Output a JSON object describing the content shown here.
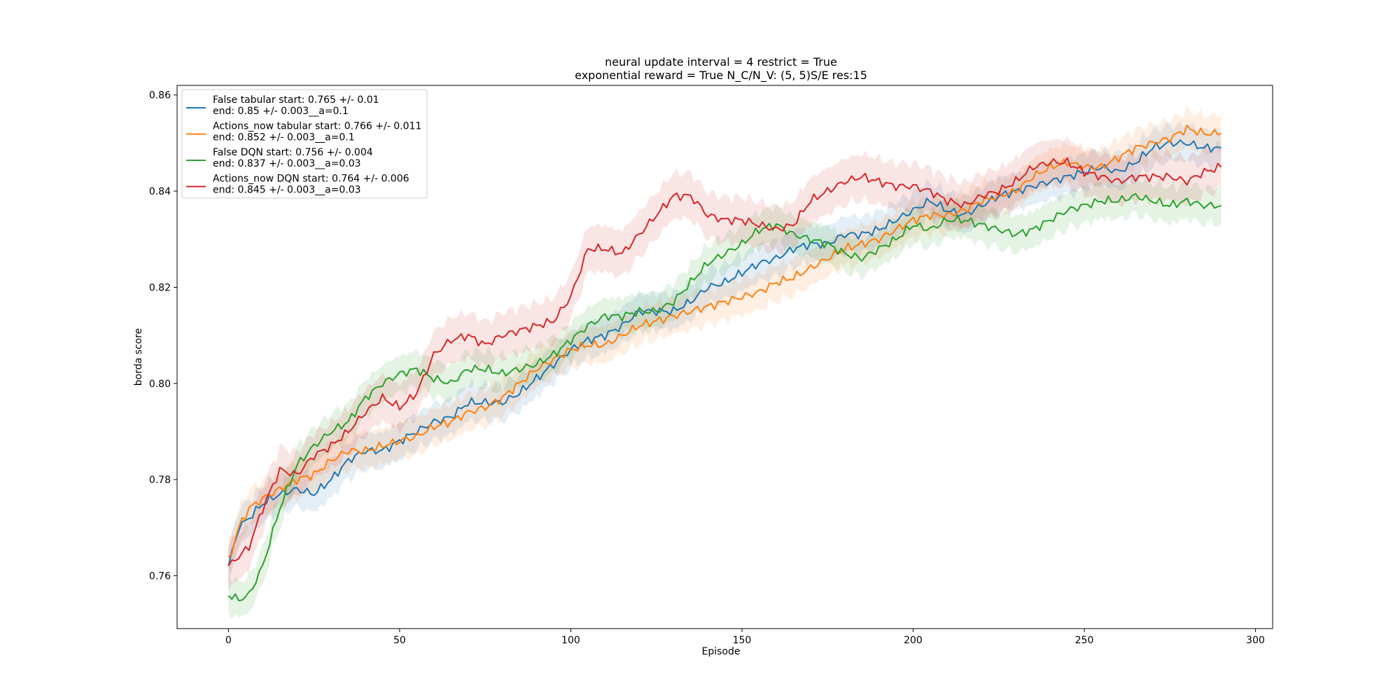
{
  "chart_data": {
    "type": "line",
    "title_line1": "neural update interval = 4 restrict = True",
    "title_line2": "exponential reward = True N_C/N_V: (5, 5)S/E res:15",
    "xlabel": "Episode",
    "ylabel": "borda score",
    "xlim": [
      -15,
      305
    ],
    "ylim": [
      0.749,
      0.862
    ],
    "xticks": [
      0,
      50,
      100,
      150,
      200,
      250,
      300
    ],
    "yticks": [
      0.76,
      0.78,
      0.8,
      0.82,
      0.84,
      0.86
    ],
    "ytick_labels": [
      "0.76",
      "0.78",
      "0.80",
      "0.82",
      "0.84",
      "0.86"
    ],
    "grid": false,
    "legend_position": "upper-left",
    "series": [
      {
        "name_line1": "False tabular start: 0.765 +/- 0.01",
        "name_line2": "end: 0.85 +/- 0.003__a=0.1",
        "color": "#1f77b4",
        "anchors_x": [
          0,
          3,
          6,
          10,
          15,
          20,
          25,
          30,
          35,
          40,
          45,
          50,
          55,
          60,
          65,
          70,
          75,
          80,
          85,
          90,
          95,
          100,
          105,
          110,
          115,
          120,
          125,
          130,
          135,
          140,
          145,
          150,
          155,
          160,
          165,
          170,
          175,
          180,
          185,
          190,
          195,
          200,
          205,
          210,
          215,
          220,
          225,
          230,
          235,
          240,
          245,
          250,
          255,
          260,
          265,
          270,
          275,
          280,
          285,
          290
        ],
        "anchors_y": [
          0.762,
          0.77,
          0.772,
          0.775,
          0.777,
          0.778,
          0.777,
          0.78,
          0.784,
          0.786,
          0.786,
          0.788,
          0.79,
          0.792,
          0.793,
          0.796,
          0.796,
          0.796,
          0.798,
          0.801,
          0.804,
          0.807,
          0.809,
          0.81,
          0.812,
          0.815,
          0.815,
          0.815,
          0.817,
          0.82,
          0.821,
          0.823,
          0.825,
          0.826,
          0.828,
          0.829,
          0.829,
          0.831,
          0.831,
          0.832,
          0.834,
          0.836,
          0.838,
          0.836,
          0.835,
          0.837,
          0.839,
          0.84,
          0.841,
          0.842,
          0.843,
          0.844,
          0.845,
          0.844,
          0.846,
          0.849,
          0.85,
          0.85,
          0.849,
          0.849
        ],
        "band": 0.003
      },
      {
        "name_line1": "Actions_now tabular start: 0.766 +/- 0.011",
        "name_line2": "end: 0.852 +/- 0.003__a=0.1",
        "color": "#ff7f0e",
        "anchors_x": [
          0,
          3,
          6,
          10,
          15,
          20,
          25,
          30,
          35,
          40,
          45,
          50,
          55,
          60,
          65,
          70,
          75,
          80,
          85,
          90,
          95,
          100,
          105,
          110,
          115,
          120,
          125,
          130,
          135,
          140,
          145,
          150,
          155,
          160,
          165,
          170,
          175,
          180,
          185,
          190,
          195,
          200,
          205,
          210,
          215,
          220,
          225,
          230,
          235,
          240,
          245,
          250,
          255,
          260,
          265,
          270,
          275,
          280,
          285,
          290
        ],
        "anchors_y": [
          0.763,
          0.77,
          0.774,
          0.776,
          0.778,
          0.78,
          0.781,
          0.784,
          0.786,
          0.786,
          0.787,
          0.788,
          0.789,
          0.791,
          0.792,
          0.794,
          0.795,
          0.797,
          0.8,
          0.803,
          0.805,
          0.807,
          0.808,
          0.808,
          0.81,
          0.812,
          0.813,
          0.814,
          0.815,
          0.816,
          0.817,
          0.818,
          0.819,
          0.821,
          0.822,
          0.824,
          0.826,
          0.828,
          0.829,
          0.83,
          0.832,
          0.834,
          0.835,
          0.835,
          0.836,
          0.838,
          0.839,
          0.84,
          0.843,
          0.845,
          0.846,
          0.845,
          0.845,
          0.847,
          0.849,
          0.85,
          0.851,
          0.853,
          0.852,
          0.852
        ],
        "band": 0.003
      },
      {
        "name_line1": "False DQN start: 0.756 +/- 0.004",
        "name_line2": "end: 0.837 +/- 0.003__a=0.03",
        "color": "#2ca02c",
        "anchors_x": [
          0,
          3,
          6,
          10,
          15,
          20,
          25,
          30,
          35,
          40,
          45,
          50,
          55,
          60,
          65,
          70,
          75,
          80,
          85,
          90,
          95,
          100,
          105,
          110,
          115,
          120,
          125,
          130,
          135,
          140,
          145,
          150,
          155,
          160,
          165,
          170,
          175,
          180,
          185,
          190,
          195,
          200,
          205,
          210,
          215,
          220,
          225,
          230,
          235,
          240,
          245,
          250,
          255,
          260,
          265,
          270,
          275,
          280,
          285,
          290
        ],
        "anchors_y": [
          0.756,
          0.755,
          0.756,
          0.762,
          0.774,
          0.783,
          0.787,
          0.79,
          0.792,
          0.797,
          0.8,
          0.802,
          0.803,
          0.801,
          0.8,
          0.803,
          0.803,
          0.802,
          0.803,
          0.804,
          0.806,
          0.809,
          0.812,
          0.814,
          0.814,
          0.815,
          0.815,
          0.817,
          0.821,
          0.825,
          0.827,
          0.829,
          0.832,
          0.833,
          0.831,
          0.83,
          0.829,
          0.827,
          0.826,
          0.828,
          0.83,
          0.833,
          0.832,
          0.834,
          0.834,
          0.833,
          0.832,
          0.831,
          0.832,
          0.834,
          0.836,
          0.837,
          0.838,
          0.838,
          0.839,
          0.838,
          0.837,
          0.838,
          0.837,
          0.837
        ],
        "band": 0.003
      },
      {
        "name_line1": "Actions_now DQN start: 0.764 +/- 0.006",
        "name_line2": "end: 0.845 +/- 0.003__a=0.03",
        "color": "#d62728",
        "anchors_x": [
          0,
          3,
          6,
          10,
          15,
          20,
          25,
          30,
          35,
          40,
          45,
          50,
          55,
          60,
          65,
          70,
          75,
          80,
          85,
          90,
          95,
          100,
          105,
          110,
          115,
          120,
          125,
          130,
          135,
          140,
          145,
          150,
          155,
          160,
          165,
          170,
          175,
          180,
          185,
          190,
          195,
          200,
          205,
          210,
          215,
          220,
          225,
          230,
          235,
          240,
          245,
          250,
          255,
          260,
          265,
          270,
          275,
          280,
          285,
          290
        ],
        "anchors_y": [
          0.762,
          0.764,
          0.766,
          0.774,
          0.782,
          0.781,
          0.785,
          0.787,
          0.79,
          0.794,
          0.797,
          0.795,
          0.798,
          0.806,
          0.809,
          0.81,
          0.808,
          0.81,
          0.811,
          0.812,
          0.813,
          0.818,
          0.828,
          0.828,
          0.827,
          0.831,
          0.835,
          0.839,
          0.839,
          0.835,
          0.834,
          0.834,
          0.833,
          0.832,
          0.833,
          0.838,
          0.84,
          0.842,
          0.843,
          0.842,
          0.841,
          0.841,
          0.84,
          0.838,
          0.837,
          0.839,
          0.84,
          0.842,
          0.845,
          0.846,
          0.846,
          0.844,
          0.843,
          0.842,
          0.843,
          0.843,
          0.843,
          0.842,
          0.844,
          0.845
        ],
        "band": 0.004
      }
    ]
  }
}
